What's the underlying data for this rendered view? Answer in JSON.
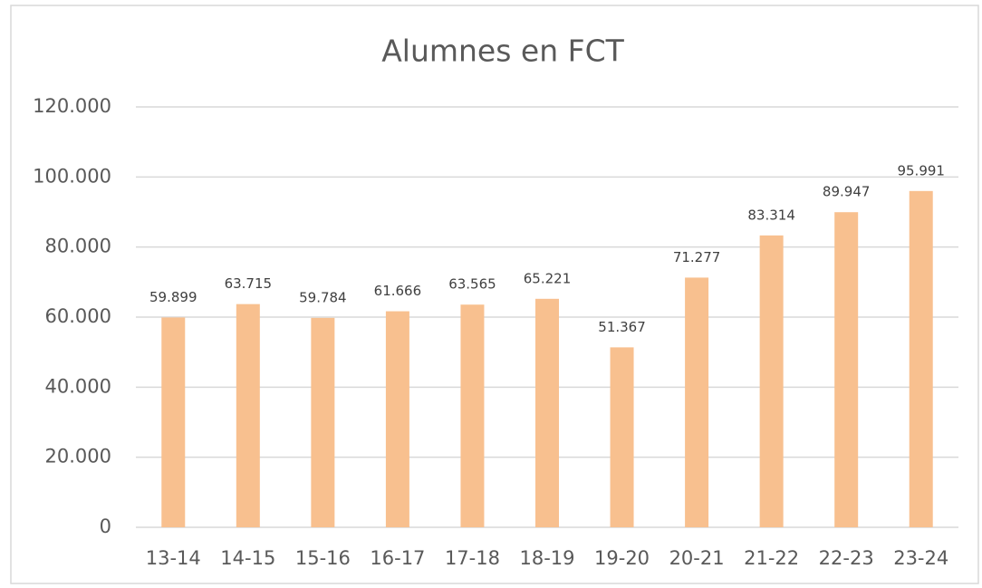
{
  "chart_data": {
    "type": "bar",
    "title": "Alumnes en FCT",
    "categories": [
      "13-14",
      "14-15",
      "15-16",
      "16-17",
      "17-18",
      "18-19",
      "19-20",
      "20-21",
      "21-22",
      "22-23",
      "23-24"
    ],
    "values": [
      59899,
      63715,
      59784,
      61666,
      63565,
      65221,
      51367,
      71277,
      83314,
      89947,
      95991
    ],
    "value_labels": [
      "59.899",
      "63.715",
      "59.784",
      "61.666",
      "63.565",
      "65.221",
      "51.367",
      "71.277",
      "83.314",
      "89.947",
      "95.991"
    ],
    "color": "#f8c08f",
    "ylim": [
      0,
      120000
    ],
    "yticks": [
      0,
      {
        "value": 20000,
        "label": "20.000"
      },
      {
        "value": 40000,
        "label": "40.000"
      },
      {
        "value": 60000,
        "label": "60.000"
      },
      {
        "value": 80000,
        "label": "80.000"
      },
      {
        "value": 100000,
        "label": "100.000"
      },
      {
        "value": 120000,
        "label": "120.000"
      }
    ],
    "grid": true
  }
}
